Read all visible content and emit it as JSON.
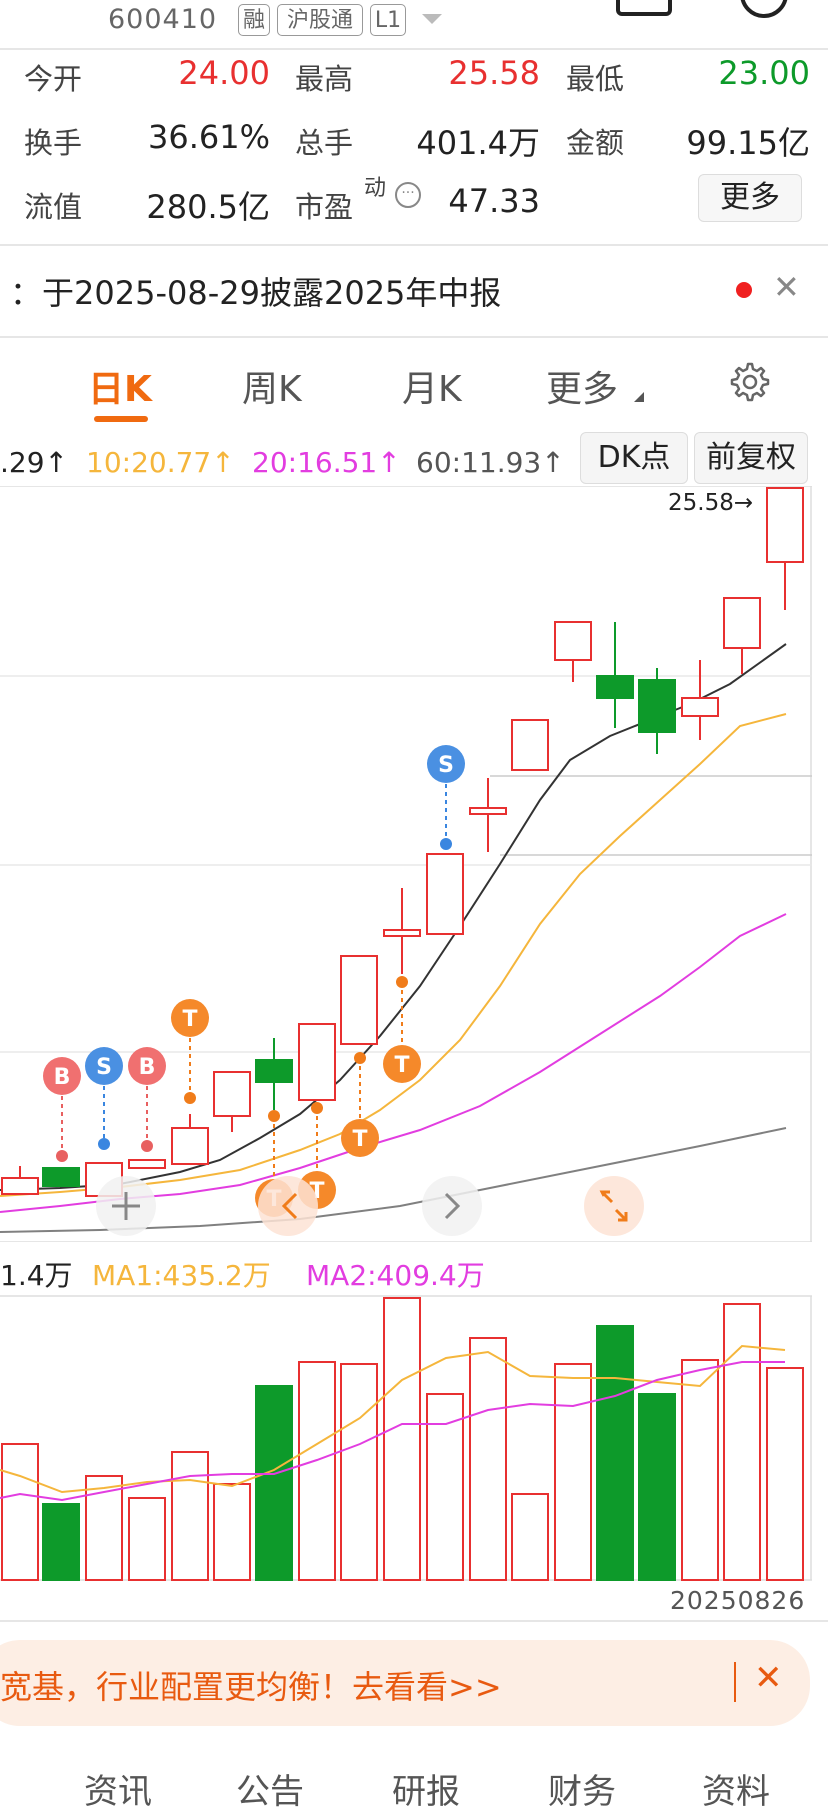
{
  "header": {
    "code": "600410",
    "tags": [
      "融",
      "沪股通",
      "L1"
    ]
  },
  "quote": {
    "open_label": "今开",
    "open_value": "24.00",
    "high_label": "最高",
    "high_value": "25.58",
    "low_label": "最低",
    "low_value": "23.00",
    "turnover_label": "换手",
    "turnover_value": "36.61%",
    "volume_label": "总手",
    "volume_value": "401.4万",
    "amount_label": "金额",
    "amount_value": "99.15亿",
    "float_label": "流值",
    "float_value": "280.5亿",
    "pe_label": "市盈",
    "pe_sup": "动",
    "pe_value": "47.33",
    "more_label": "更多"
  },
  "notice": {
    "text": "：于2025-08-29披露2025年中报"
  },
  "tabs": [
    {
      "label": "日K",
      "active": true
    },
    {
      "label": "周K",
      "active": false
    },
    {
      "label": "月K",
      "active": false
    },
    {
      "label": "更多",
      "active": false
    }
  ],
  "ma_legend": {
    "ma5": ".29↑",
    "ma10": "10:20.77↑",
    "ma20": "20:16.51↑",
    "ma60": "60:11.93↑",
    "dk_label": "DK点",
    "adjust_label": "前复权"
  },
  "chart_marker": {
    "high_label": "25.58→"
  },
  "signals": [
    "B",
    "S",
    "B",
    "T",
    "S",
    "T",
    "T",
    "T",
    "T",
    "T"
  ],
  "volume_legend": {
    "vol": "1.4万",
    "ma1": "MA1:435.2万",
    "ma2": "MA2:409.4万"
  },
  "date_label": "20250826",
  "banner": {
    "text": "宽基，行业配置更均衡！去看看>>",
    "close": "✕"
  },
  "bottom_tabs": [
    "资讯",
    "公告",
    "研报",
    "财务",
    "资料"
  ],
  "colors": {
    "up": "#e83030",
    "down": "#0d9a2a",
    "accent": "#f06a10",
    "ma10": "#f5b63c",
    "ma20": "#e23de0",
    "ma60": "#808080"
  }
}
